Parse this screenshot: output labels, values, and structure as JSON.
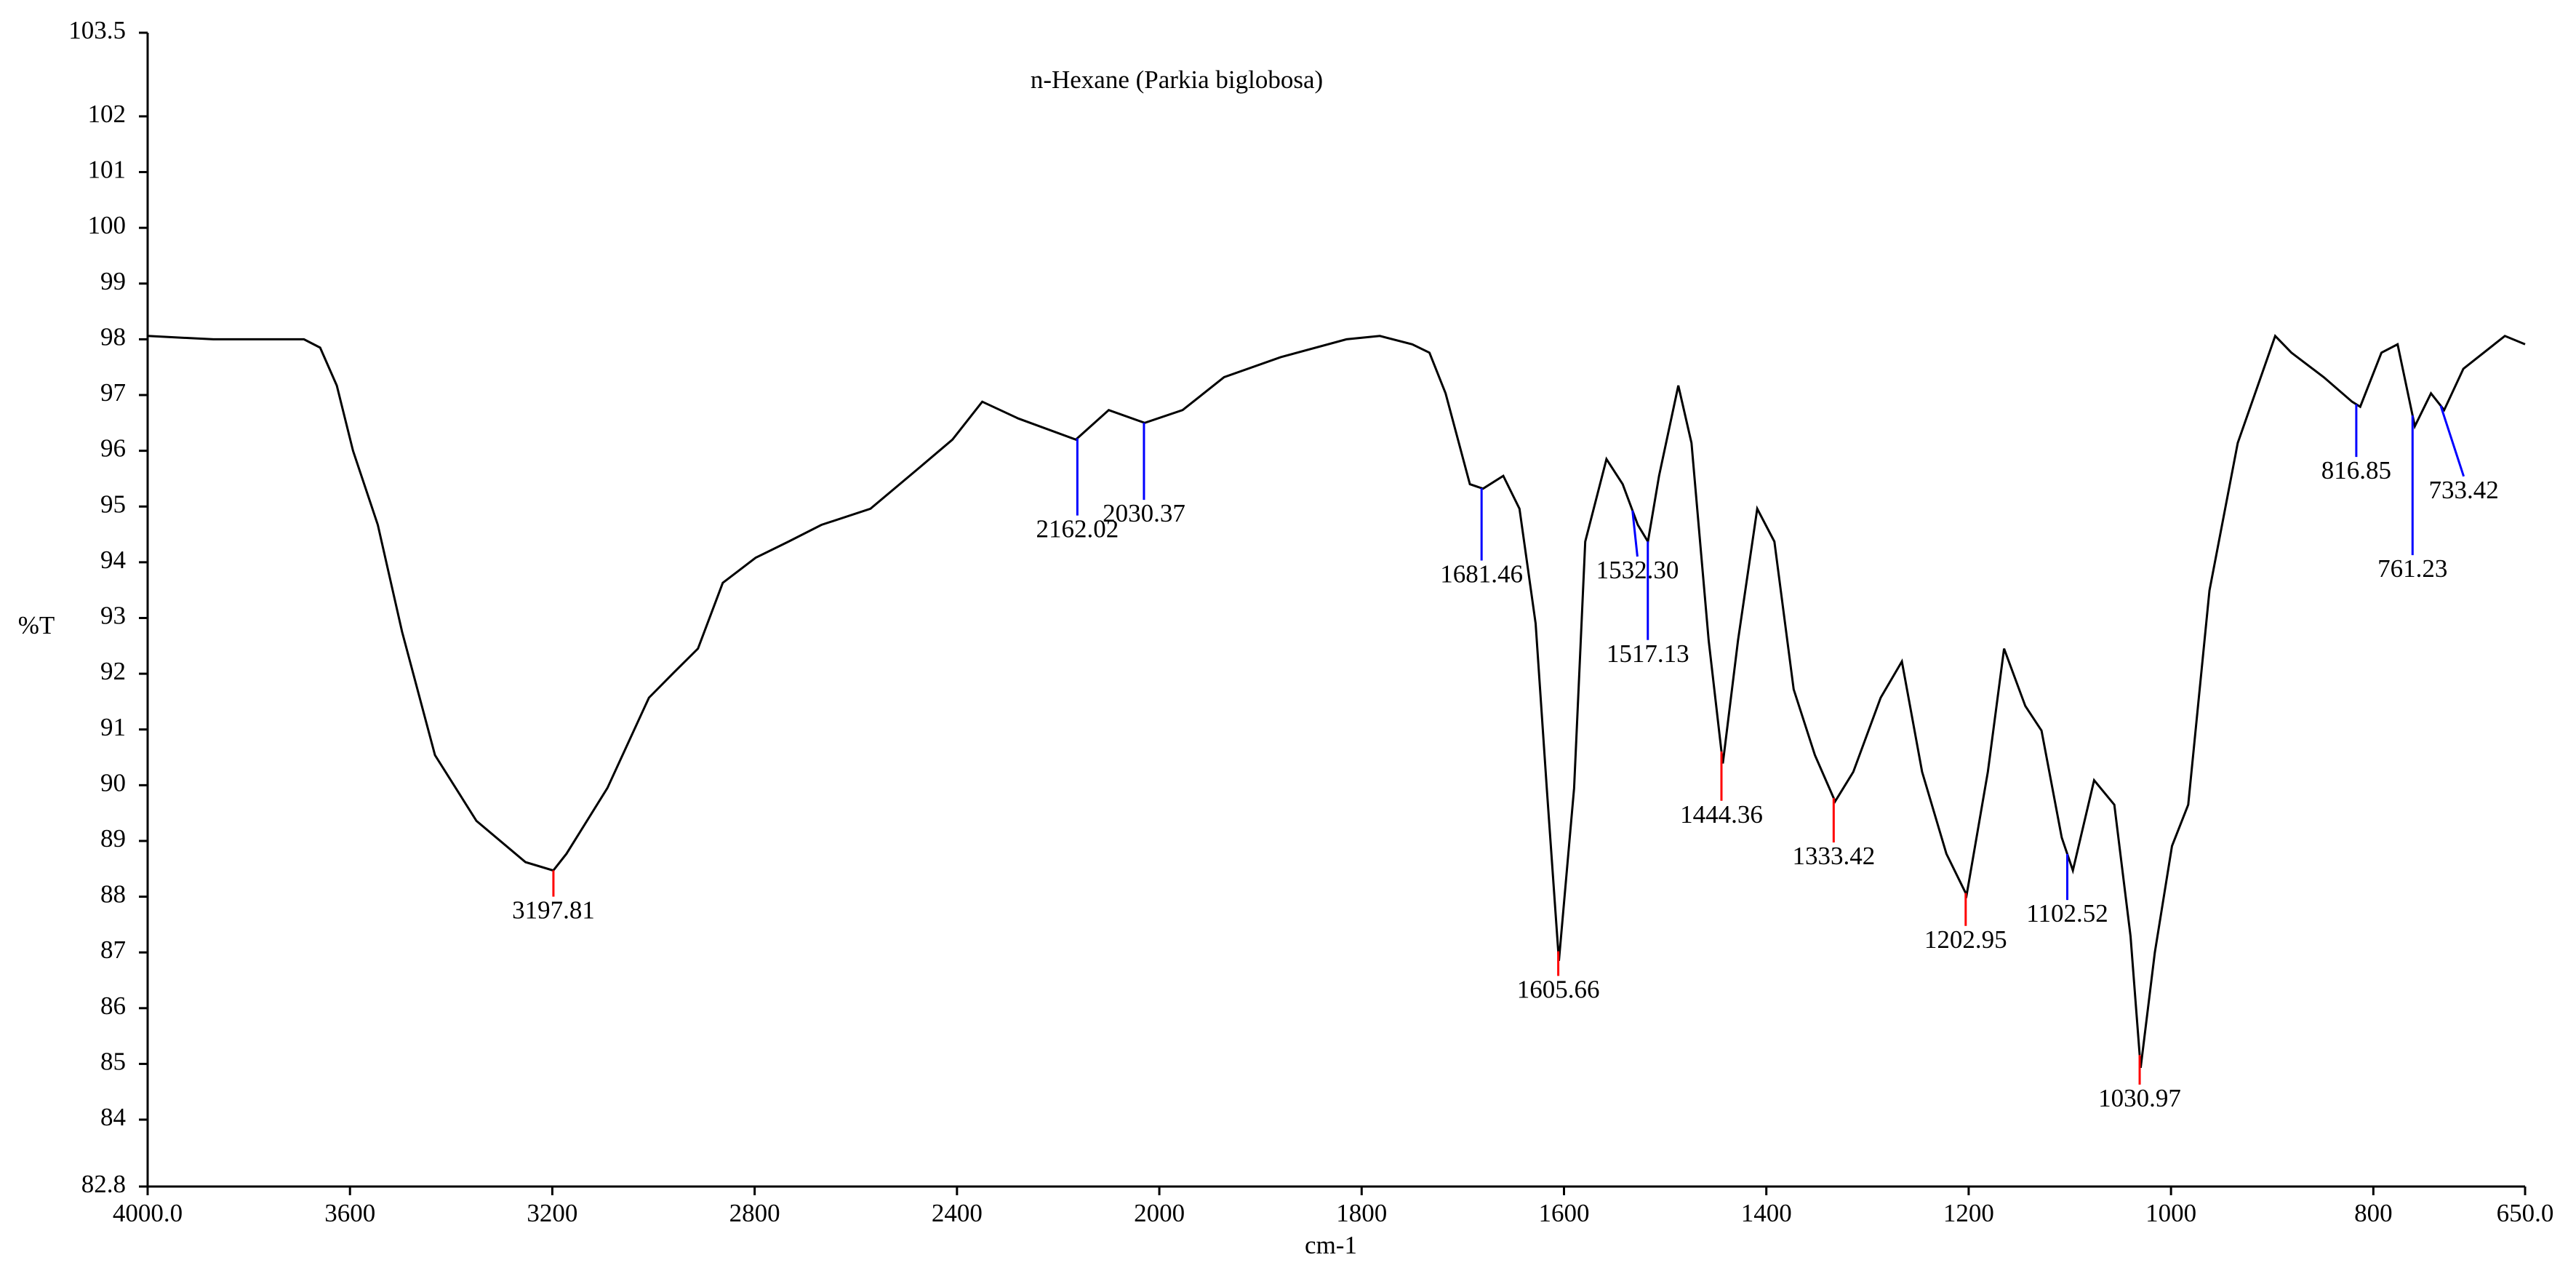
{
  "chart_data": {
    "type": "line",
    "title": "n-Hexane (Parkia biglobosa)",
    "x_label": "cm-1",
    "y_label": "%T",
    "xlim": [
      4000,
      650
    ],
    "xscale": {
      "break": 2000,
      "factor": 2
    },
    "xticks": [
      {
        "value": 4000,
        "label": "4000.0"
      },
      3600,
      3200,
      2800,
      2400,
      2000,
      1800,
      1600,
      1400,
      1200,
      1000,
      800,
      {
        "value": 650,
        "label": "650.0"
      }
    ],
    "ylim": [
      82.8,
      103.5
    ],
    "yticks": [
      82.8,
      84,
      85,
      86,
      87,
      88,
      89,
      90,
      91,
      92,
      93,
      94,
      95,
      96,
      97,
      98,
      99,
      100,
      101,
      102,
      103.5
    ],
    "color": "#000000",
    "x": [
      4000,
      3870,
      3691,
      3659,
      3626,
      3594,
      3545,
      3497,
      3432,
      3350,
      3253,
      3198,
      3172,
      3091,
      3009,
      2961,
      2912,
      2863,
      2798,
      2733,
      2668,
      2571,
      2474,
      2409,
      2350,
      2279,
      2165,
      2100,
      2029,
      1977,
      1936,
      1880,
      1815,
      1782,
      1750,
      1733,
      1717,
      1693,
      1680,
      1660,
      1644,
      1628,
      1617,
      1605,
      1590,
      1579,
      1558,
      1542,
      1527,
      1517,
      1506,
      1487,
      1474,
      1457,
      1443,
      1428,
      1409,
      1392,
      1373,
      1352,
      1332,
      1314,
      1287,
      1266,
      1246,
      1222,
      1202,
      1181,
      1165,
      1144,
      1128,
      1108,
      1097,
      1076,
      1056,
      1040,
      1030,
      1016,
      999,
      983,
      962,
      934,
      897,
      881,
      849,
      821,
      813,
      792,
      776,
      759,
      743,
      730,
      711,
      670,
      650
    ],
    "values": [
      98.06,
      98.0,
      98.0,
      97.85,
      97.17,
      96.0,
      94.67,
      92.75,
      90.54,
      89.36,
      88.62,
      88.47,
      88.77,
      89.95,
      91.57,
      92.01,
      92.45,
      93.63,
      94.08,
      94.37,
      94.67,
      94.96,
      95.7,
      96.2,
      96.88,
      96.58,
      96.2,
      96.73,
      96.5,
      96.73,
      97.32,
      97.68,
      98.0,
      98.06,
      97.91,
      97.76,
      97.03,
      95.4,
      95.32,
      95.55,
      94.96,
      92.9,
      89.95,
      86.85,
      89.95,
      94.37,
      95.85,
      95.4,
      94.67,
      94.37,
      95.55,
      97.17,
      96.14,
      92.6,
      90.39,
      92.6,
      94.96,
      94.37,
      91.72,
      90.54,
      89.71,
      90.24,
      91.57,
      92.22,
      90.24,
      88.77,
      88.03,
      90.24,
      92.45,
      91.42,
      90.98,
      89.06,
      88.47,
      90.09,
      89.65,
      87.29,
      84.93,
      87.0,
      88.91,
      89.65,
      93.49,
      96.14,
      98.06,
      97.76,
      97.32,
      96.88,
      96.79,
      97.76,
      97.91,
      96.44,
      97.03,
      96.73,
      97.47,
      98.06,
      97.91
    ],
    "peaks": [
      {
        "x": 3197.81,
        "label": "3197.81",
        "color": "#ff0000"
      },
      {
        "x": 2162.02,
        "label": "2162.02",
        "color": "#0000ff"
      },
      {
        "x": 2030.37,
        "label": "2030.37",
        "color": "#0000ff"
      },
      {
        "x": 1681.46,
        "label": "1681.46",
        "color": "#0000ff"
      },
      {
        "x": 1605.66,
        "label": "1605.66",
        "color": "#ff0000"
      },
      {
        "x": 1532.3,
        "label": "1532.30",
        "color": "#0000ff"
      },
      {
        "x": 1517.13,
        "label": "1517.13",
        "color": "#0000ff"
      },
      {
        "x": 1444.36,
        "label": "1444.36",
        "color": "#ff0000"
      },
      {
        "x": 1333.42,
        "label": "1333.42",
        "color": "#ff0000"
      },
      {
        "x": 1202.95,
        "label": "1202.95",
        "color": "#ff0000"
      },
      {
        "x": 1102.52,
        "label": "1102.52",
        "color": "#0000ff"
      },
      {
        "x": 1030.97,
        "label": "1030.97",
        "color": "#ff0000"
      },
      {
        "x": 816.85,
        "label": "816.85",
        "color": "#0000ff"
      },
      {
        "x": 761.23,
        "label": "761.23",
        "color": "#0000ff"
      },
      {
        "x": 733.42,
        "label": "733.42",
        "color": "#0000ff"
      }
    ]
  }
}
